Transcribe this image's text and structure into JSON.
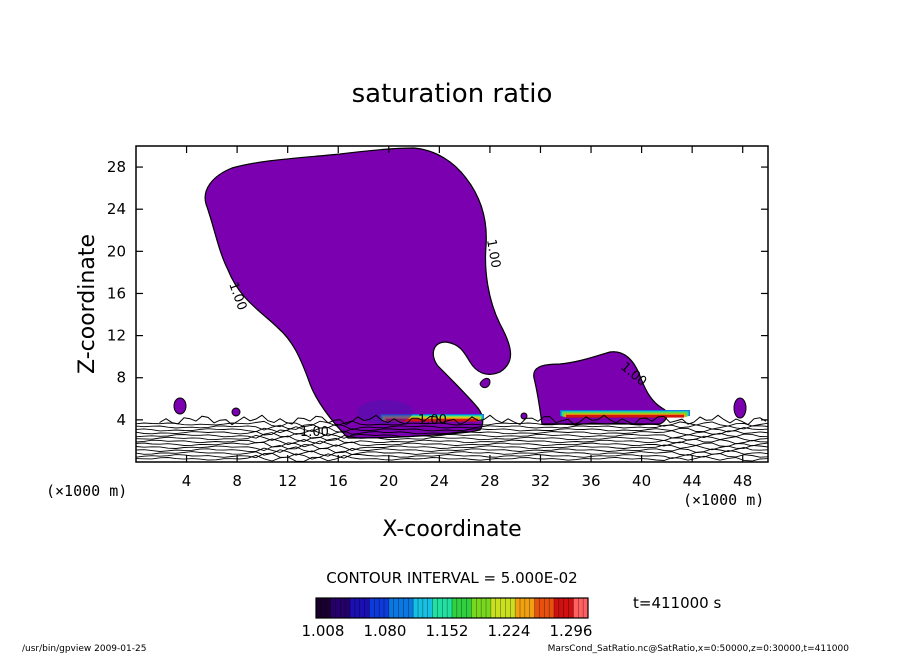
{
  "chart_data": {
    "type": "contour",
    "title": "saturation ratio",
    "xlabel": "X-coordinate",
    "ylabel": "Z-coordinate",
    "x_unit": "(×1000 m)",
    "y_unit": "(×1000 m)",
    "xlim": [
      0,
      50
    ],
    "ylim": [
      0,
      30
    ],
    "xticks": [
      4,
      8,
      12,
      16,
      20,
      24,
      28,
      32,
      36,
      40,
      44,
      48
    ],
    "yticks": [
      4,
      8,
      12,
      16,
      20,
      24,
      28
    ],
    "contour_label": "1.00",
    "contour_interval_text": "CONTOUR INTERVAL = 5.000E-02",
    "time_text": "t=411000 s",
    "colorbar_ticks": [
      "1.008",
      "1.080",
      "1.152",
      "1.224",
      "1.296"
    ],
    "colorbar_colors": [
      "#1a0030",
      "#25006a",
      "#1a0fb0",
      "#0d3ad8",
      "#0a78e0",
      "#17c0e0",
      "#22e0a0",
      "#30d040",
      "#78d820",
      "#c8e020",
      "#f0a010",
      "#e85010",
      "#d01010",
      "#ff6060"
    ],
    "fill_color": "#7a00b0"
  },
  "footer": {
    "left": "/usr/bin/gpview   2009-01-25",
    "right": "MarsCond_SatRatio.nc@SatRatio,x=0:50000,z=0:30000,t=411000"
  }
}
